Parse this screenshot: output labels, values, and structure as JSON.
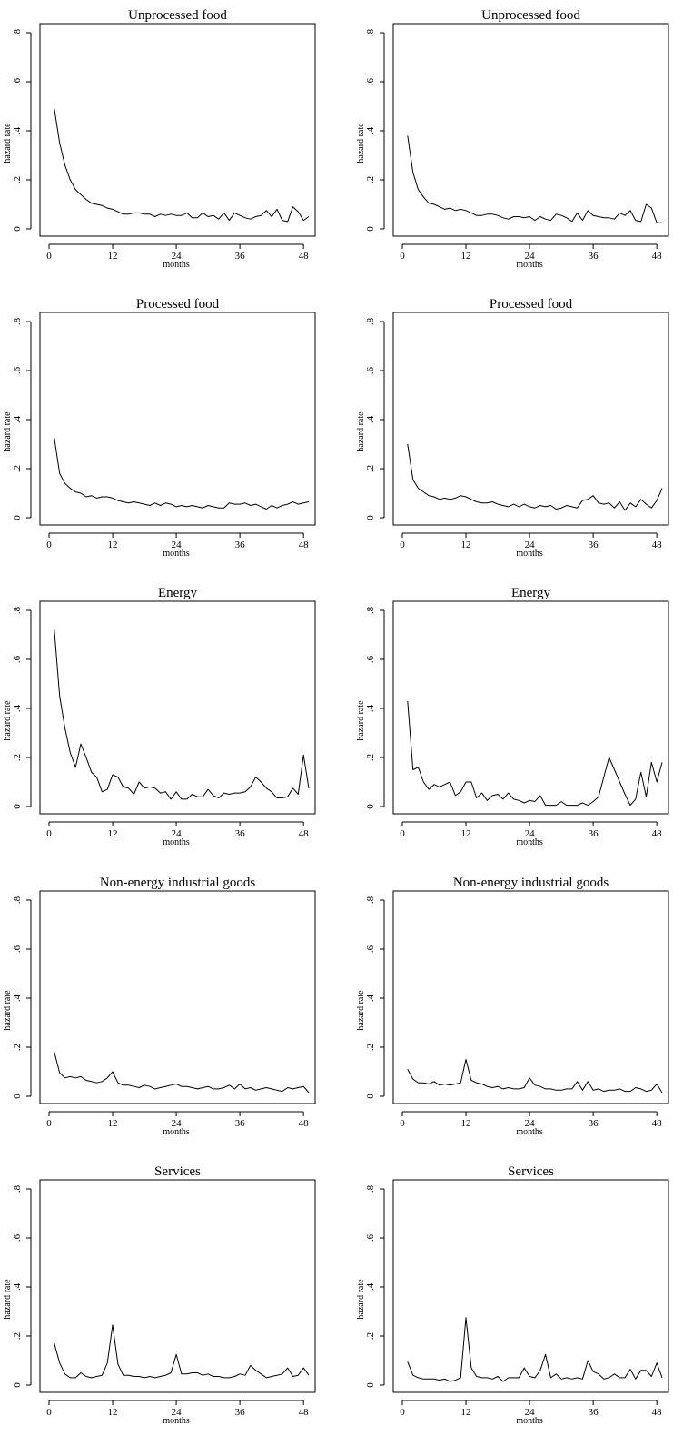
{
  "chart_data": [
    {
      "type": "line",
      "title": "Unprocessed food",
      "xlabel": "months",
      "ylabel": "hazard rate",
      "xlim": [
        0,
        49
      ],
      "ylim": [
        0,
        0.8
      ],
      "xticks": [
        "0",
        "12",
        "24",
        "36",
        "48"
      ],
      "yticks": [
        "0",
        ".2",
        ".4",
        ".6",
        ".8"
      ],
      "grid": false,
      "x": [
        1,
        2,
        3,
        4,
        5,
        6,
        7,
        8,
        9,
        10,
        11,
        12,
        13,
        14,
        15,
        16,
        17,
        18,
        19,
        20,
        21,
        22,
        23,
        24,
        25,
        26,
        27,
        28,
        29,
        30,
        31,
        32,
        33,
        34,
        35,
        36,
        37,
        38,
        39,
        40,
        41,
        42,
        43,
        44,
        45,
        46,
        47,
        48,
        49
      ],
      "y": [
        0.49,
        0.35,
        0.26,
        0.2,
        0.16,
        0.14,
        0.12,
        0.105,
        0.1,
        0.095,
        0.085,
        0.08,
        0.07,
        0.06,
        0.06,
        0.065,
        0.065,
        0.06,
        0.06,
        0.05,
        0.06,
        0.055,
        0.06,
        0.055,
        0.055,
        0.065,
        0.045,
        0.045,
        0.065,
        0.05,
        0.055,
        0.04,
        0.065,
        0.035,
        0.065,
        0.055,
        0.045,
        0.04,
        0.05,
        0.055,
        0.075,
        0.05,
        0.08,
        0.035,
        0.03,
        0.09,
        0.07,
        0.035,
        0.05
      ]
    },
    {
      "type": "line",
      "title": "Unprocessed food",
      "xlabel": "months",
      "ylabel": "hazard rate",
      "xlim": [
        0,
        49
      ],
      "ylim": [
        0,
        0.8
      ],
      "xticks": [
        "0",
        "12",
        "24",
        "36",
        "48"
      ],
      "yticks": [
        "0",
        ".2",
        ".4",
        ".6",
        ".8"
      ],
      "grid": false,
      "x": [
        1,
        2,
        3,
        4,
        5,
        6,
        7,
        8,
        9,
        10,
        11,
        12,
        13,
        14,
        15,
        16,
        17,
        18,
        19,
        20,
        21,
        22,
        23,
        24,
        25,
        26,
        27,
        28,
        29,
        30,
        31,
        32,
        33,
        34,
        35,
        36,
        37,
        38,
        39,
        40,
        41,
        42,
        43,
        44,
        45,
        46,
        47,
        48,
        49
      ],
      "y": [
        0.38,
        0.23,
        0.16,
        0.13,
        0.105,
        0.1,
        0.09,
        0.08,
        0.085,
        0.075,
        0.08,
        0.075,
        0.065,
        0.055,
        0.055,
        0.06,
        0.06,
        0.055,
        0.045,
        0.04,
        0.05,
        0.05,
        0.045,
        0.05,
        0.035,
        0.05,
        0.04,
        0.035,
        0.06,
        0.055,
        0.045,
        0.03,
        0.065,
        0.035,
        0.075,
        0.055,
        0.05,
        0.045,
        0.045,
        0.04,
        0.065,
        0.055,
        0.075,
        0.035,
        0.03,
        0.1,
        0.085,
        0.025,
        0.025
      ]
    },
    {
      "type": "line",
      "title": "Processed food",
      "xlabel": "months",
      "ylabel": "hazard rate",
      "xlim": [
        0,
        49
      ],
      "ylim": [
        0,
        0.8
      ],
      "xticks": [
        "0",
        "12",
        "24",
        "36",
        "48"
      ],
      "yticks": [
        "0",
        ".2",
        ".4",
        ".6",
        ".8"
      ],
      "grid": false,
      "x": [
        1,
        2,
        3,
        4,
        5,
        6,
        7,
        8,
        9,
        10,
        11,
        12,
        13,
        14,
        15,
        16,
        17,
        18,
        19,
        20,
        21,
        22,
        23,
        24,
        25,
        26,
        27,
        28,
        29,
        30,
        31,
        32,
        33,
        34,
        35,
        36,
        37,
        38,
        39,
        40,
        41,
        42,
        43,
        44,
        45,
        46,
        47,
        48,
        49
      ],
      "y": [
        0.325,
        0.18,
        0.14,
        0.12,
        0.105,
        0.1,
        0.085,
        0.09,
        0.08,
        0.085,
        0.085,
        0.08,
        0.07,
        0.065,
        0.06,
        0.065,
        0.06,
        0.055,
        0.05,
        0.06,
        0.05,
        0.06,
        0.055,
        0.045,
        0.05,
        0.045,
        0.05,
        0.045,
        0.04,
        0.05,
        0.045,
        0.04,
        0.04,
        0.06,
        0.055,
        0.055,
        0.06,
        0.05,
        0.055,
        0.045,
        0.035,
        0.05,
        0.04,
        0.05,
        0.055,
        0.065,
        0.055,
        0.06,
        0.065
      ]
    },
    {
      "type": "line",
      "title": "Processed food",
      "xlabel": "months",
      "ylabel": "hazard rate",
      "xlim": [
        0,
        49
      ],
      "ylim": [
        0,
        0.8
      ],
      "xticks": [
        "0",
        "12",
        "24",
        "36",
        "48"
      ],
      "yticks": [
        "0",
        ".2",
        ".4",
        ".6",
        ".8"
      ],
      "grid": false,
      "x": [
        1,
        2,
        3,
        4,
        5,
        6,
        7,
        8,
        9,
        10,
        11,
        12,
        13,
        14,
        15,
        16,
        17,
        18,
        19,
        20,
        21,
        22,
        23,
        24,
        25,
        26,
        27,
        28,
        29,
        30,
        31,
        32,
        33,
        34,
        35,
        36,
        37,
        38,
        39,
        40,
        41,
        42,
        43,
        44,
        45,
        46,
        47,
        48,
        49
      ],
      "y": [
        0.3,
        0.155,
        0.12,
        0.105,
        0.09,
        0.085,
        0.075,
        0.08,
        0.075,
        0.08,
        0.09,
        0.085,
        0.075,
        0.065,
        0.06,
        0.06,
        0.065,
        0.055,
        0.05,
        0.045,
        0.055,
        0.045,
        0.055,
        0.045,
        0.04,
        0.05,
        0.045,
        0.05,
        0.035,
        0.04,
        0.05,
        0.045,
        0.04,
        0.07,
        0.075,
        0.09,
        0.06,
        0.055,
        0.06,
        0.04,
        0.065,
        0.03,
        0.06,
        0.045,
        0.075,
        0.055,
        0.04,
        0.07,
        0.12
      ]
    },
    {
      "type": "line",
      "title": "Energy",
      "xlabel": "months",
      "ylabel": "hazard rate",
      "xlim": [
        0,
        49
      ],
      "ylim": [
        0,
        0.8
      ],
      "xticks": [
        "0",
        "12",
        "24",
        "36",
        "48"
      ],
      "yticks": [
        "0",
        ".2",
        ".4",
        ".6",
        ".8"
      ],
      "grid": false,
      "x": [
        1,
        2,
        3,
        4,
        5,
        6,
        7,
        8,
        9,
        10,
        11,
        12,
        13,
        14,
        15,
        16,
        17,
        18,
        19,
        20,
        21,
        22,
        23,
        24,
        25,
        26,
        27,
        28,
        29,
        30,
        31,
        32,
        33,
        34,
        35,
        36,
        37,
        38,
        39,
        40,
        41,
        42,
        43,
        44,
        45,
        46,
        47,
        48,
        49
      ],
      "y": [
        0.72,
        0.45,
        0.32,
        0.22,
        0.16,
        0.255,
        0.2,
        0.14,
        0.12,
        0.06,
        0.07,
        0.13,
        0.12,
        0.08,
        0.075,
        0.05,
        0.1,
        0.075,
        0.08,
        0.075,
        0.055,
        0.06,
        0.03,
        0.06,
        0.03,
        0.03,
        0.05,
        0.04,
        0.04,
        0.07,
        0.045,
        0.035,
        0.055,
        0.05,
        0.055,
        0.055,
        0.06,
        0.08,
        0.12,
        0.1,
        0.075,
        0.06,
        0.035,
        0.035,
        0.04,
        0.075,
        0.05,
        0.21,
        0.075
      ]
    },
    {
      "type": "line",
      "title": "Energy",
      "xlabel": "months",
      "ylabel": "hazard rate",
      "xlim": [
        0,
        49
      ],
      "ylim": [
        0,
        0.8
      ],
      "xticks": [
        "0",
        "12",
        "24",
        "36",
        "48"
      ],
      "yticks": [
        "0",
        ".2",
        ".4",
        ".6",
        ".8"
      ],
      "grid": false,
      "x": [
        1,
        2,
        3,
        4,
        5,
        6,
        7,
        8,
        9,
        10,
        11,
        12,
        13,
        14,
        15,
        16,
        17,
        18,
        19,
        20,
        21,
        22,
        23,
        24,
        25,
        26,
        27,
        28,
        29,
        30,
        31,
        32,
        33,
        34,
        35,
        36,
        37,
        38,
        39,
        40,
        41,
        42,
        43,
        44,
        45,
        46,
        47,
        48,
        49
      ],
      "y": [
        0.43,
        0.15,
        0.16,
        0.1,
        0.07,
        0.09,
        0.08,
        0.09,
        0.1,
        0.045,
        0.06,
        0.1,
        0.1,
        0.035,
        0.055,
        0.025,
        0.045,
        0.05,
        0.03,
        0.055,
        0.03,
        0.025,
        0.015,
        0.025,
        0.02,
        0.045,
        0.005,
        0.005,
        0.005,
        0.02,
        0.005,
        0.005,
        0.005,
        0.015,
        0.005,
        0.02,
        0.04,
        0.12,
        0.2,
        0.15,
        0.1,
        0.05,
        0.005,
        0.03,
        0.14,
        0.04,
        0.18,
        0.1,
        0.18
      ]
    },
    {
      "type": "line",
      "title": "Non-energy industrial goods",
      "xlabel": "months",
      "ylabel": "hazard rate",
      "xlim": [
        0,
        49
      ],
      "ylim": [
        0,
        0.8
      ],
      "xticks": [
        "0",
        "12",
        "24",
        "36",
        "48"
      ],
      "yticks": [
        "0",
        ".2",
        ".4",
        ".6",
        ".8"
      ],
      "grid": false,
      "x": [
        1,
        2,
        3,
        4,
        5,
        6,
        7,
        8,
        9,
        10,
        11,
        12,
        13,
        14,
        15,
        16,
        17,
        18,
        19,
        20,
        21,
        22,
        23,
        24,
        25,
        26,
        27,
        28,
        29,
        30,
        31,
        32,
        33,
        34,
        35,
        36,
        37,
        38,
        39,
        40,
        41,
        42,
        43,
        44,
        45,
        46,
        47,
        48,
        49
      ],
      "y": [
        0.18,
        0.095,
        0.075,
        0.08,
        0.075,
        0.08,
        0.065,
        0.06,
        0.055,
        0.06,
        0.075,
        0.1,
        0.055,
        0.045,
        0.045,
        0.04,
        0.035,
        0.045,
        0.04,
        0.03,
        0.035,
        0.04,
        0.045,
        0.05,
        0.04,
        0.04,
        0.035,
        0.03,
        0.035,
        0.04,
        0.03,
        0.03,
        0.035,
        0.045,
        0.03,
        0.05,
        0.03,
        0.035,
        0.025,
        0.03,
        0.035,
        0.03,
        0.025,
        0.02,
        0.035,
        0.03,
        0.035,
        0.04,
        0.015
      ]
    },
    {
      "type": "line",
      "title": "Non-energy industrial goods",
      "xlabel": "months",
      "ylabel": "hazard rate",
      "xlim": [
        0,
        49
      ],
      "ylim": [
        0,
        0.8
      ],
      "xticks": [
        "0",
        "12",
        "24",
        "36",
        "48"
      ],
      "yticks": [
        "0",
        ".2",
        ".4",
        ".6",
        ".8"
      ],
      "grid": false,
      "x": [
        1,
        2,
        3,
        4,
        5,
        6,
        7,
        8,
        9,
        10,
        11,
        12,
        13,
        14,
        15,
        16,
        17,
        18,
        19,
        20,
        21,
        22,
        23,
        24,
        25,
        26,
        27,
        28,
        29,
        30,
        31,
        32,
        33,
        34,
        35,
        36,
        37,
        38,
        39,
        40,
        41,
        42,
        43,
        44,
        45,
        46,
        47,
        48,
        49
      ],
      "y": [
        0.11,
        0.07,
        0.055,
        0.055,
        0.05,
        0.06,
        0.045,
        0.05,
        0.045,
        0.05,
        0.055,
        0.15,
        0.065,
        0.055,
        0.05,
        0.04,
        0.035,
        0.04,
        0.03,
        0.035,
        0.03,
        0.03,
        0.035,
        0.075,
        0.045,
        0.04,
        0.03,
        0.03,
        0.025,
        0.025,
        0.03,
        0.03,
        0.06,
        0.025,
        0.06,
        0.025,
        0.03,
        0.02,
        0.025,
        0.025,
        0.03,
        0.02,
        0.02,
        0.035,
        0.03,
        0.02,
        0.025,
        0.05,
        0.015
      ]
    },
    {
      "type": "line",
      "title": "Services",
      "xlabel": "months",
      "ylabel": "hazard rate",
      "xlim": [
        0,
        49
      ],
      "ylim": [
        0,
        0.8
      ],
      "xticks": [
        "0",
        "12",
        "24",
        "36",
        "48"
      ],
      "yticks": [
        "0",
        ".2",
        ".4",
        ".6",
        ".8"
      ],
      "grid": false,
      "x": [
        1,
        2,
        3,
        4,
        5,
        6,
        7,
        8,
        9,
        10,
        11,
        12,
        13,
        14,
        15,
        16,
        17,
        18,
        19,
        20,
        21,
        22,
        23,
        24,
        25,
        26,
        27,
        28,
        29,
        30,
        31,
        32,
        33,
        34,
        35,
        36,
        37,
        38,
        39,
        40,
        41,
        42,
        43,
        44,
        45,
        46,
        47,
        48,
        49
      ],
      "y": [
        0.17,
        0.09,
        0.045,
        0.03,
        0.03,
        0.05,
        0.035,
        0.03,
        0.035,
        0.04,
        0.09,
        0.245,
        0.085,
        0.04,
        0.04,
        0.035,
        0.035,
        0.03,
        0.035,
        0.03,
        0.035,
        0.04,
        0.05,
        0.125,
        0.045,
        0.045,
        0.05,
        0.05,
        0.04,
        0.045,
        0.035,
        0.035,
        0.03,
        0.03,
        0.035,
        0.045,
        0.04,
        0.08,
        0.06,
        0.045,
        0.03,
        0.035,
        0.04,
        0.045,
        0.07,
        0.035,
        0.04,
        0.07,
        0.04
      ]
    },
    {
      "type": "line",
      "title": "Services",
      "xlabel": "months",
      "ylabel": "hazard rate",
      "xlim": [
        0,
        49
      ],
      "ylim": [
        0,
        0.8
      ],
      "xticks": [
        "0",
        "12",
        "24",
        "36",
        "48"
      ],
      "yticks": [
        "0",
        ".2",
        ".4",
        ".6",
        ".8"
      ],
      "grid": false,
      "x": [
        1,
        2,
        3,
        4,
        5,
        6,
        7,
        8,
        9,
        10,
        11,
        12,
        13,
        14,
        15,
        16,
        17,
        18,
        19,
        20,
        21,
        22,
        23,
        24,
        25,
        26,
        27,
        28,
        29,
        30,
        31,
        32,
        33,
        34,
        35,
        36,
        37,
        38,
        39,
        40,
        41,
        42,
        43,
        44,
        45,
        46,
        47,
        48,
        49
      ],
      "y": [
        0.095,
        0.04,
        0.03,
        0.025,
        0.025,
        0.025,
        0.02,
        0.025,
        0.015,
        0.02,
        0.03,
        0.275,
        0.07,
        0.035,
        0.03,
        0.03,
        0.025,
        0.035,
        0.015,
        0.03,
        0.03,
        0.03,
        0.07,
        0.035,
        0.03,
        0.06,
        0.125,
        0.03,
        0.045,
        0.025,
        0.03,
        0.025,
        0.03,
        0.025,
        0.1,
        0.055,
        0.045,
        0.025,
        0.03,
        0.045,
        0.03,
        0.03,
        0.065,
        0.025,
        0.06,
        0.06,
        0.035,
        0.09,
        0.03
      ]
    }
  ]
}
